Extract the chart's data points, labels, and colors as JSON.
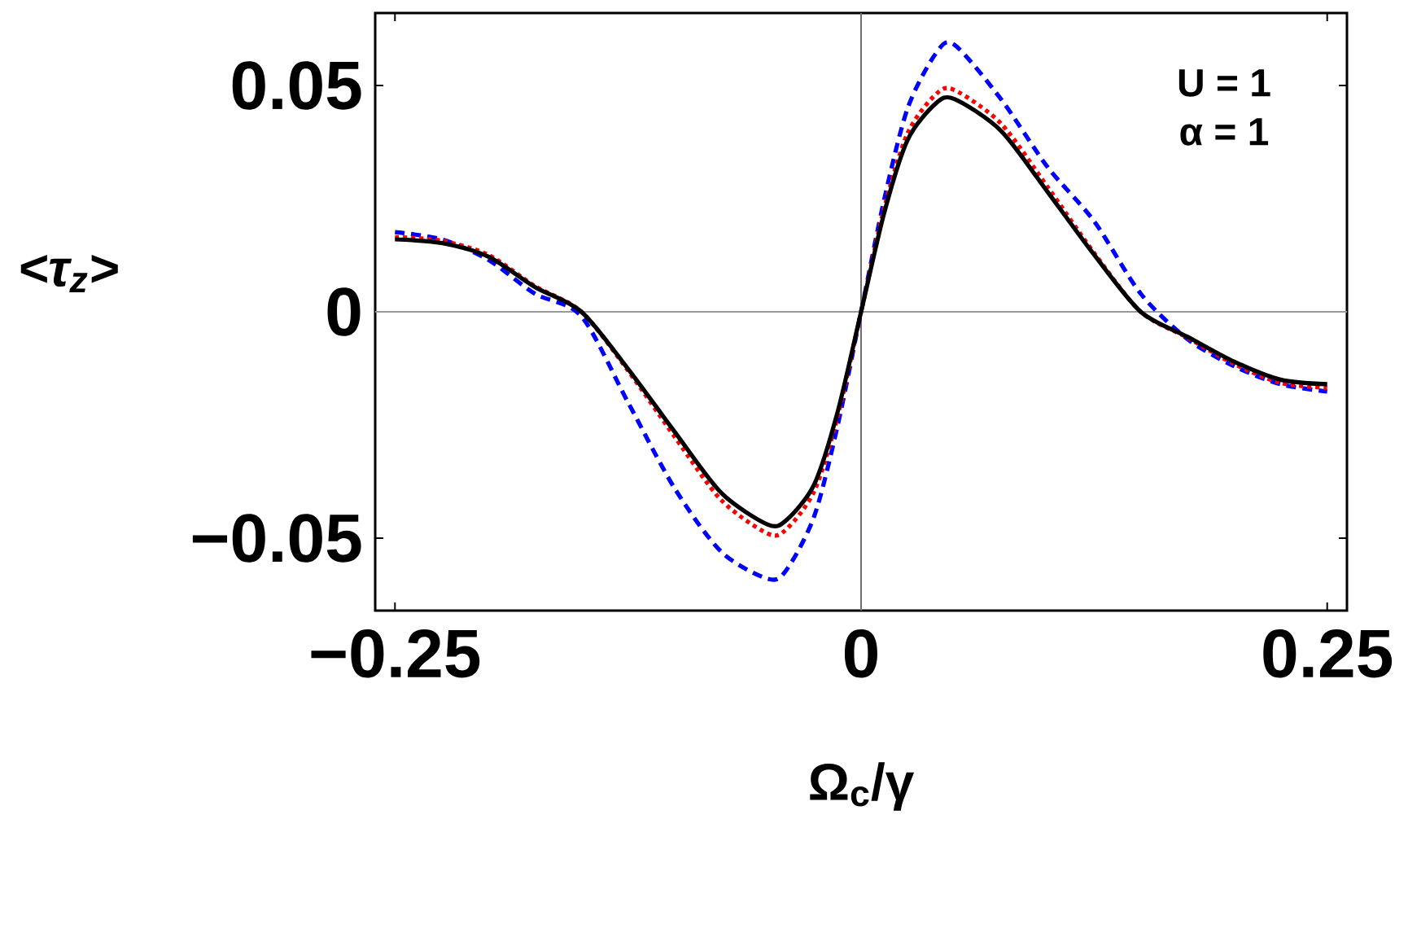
{
  "chart_data": {
    "type": "line",
    "xlabel": "Ω$_{c}$/γ",
    "ylabel": "<τ$_{z}$>",
    "annotations": [
      "U = 1",
      "α = 1"
    ],
    "xlim": [
      -0.2606,
      0.2606
    ],
    "ylim": [
      -0.066,
      0.066
    ],
    "xticks": [
      {
        "value": -0.25,
        "label": "−0.25"
      },
      0,
      0.25
    ],
    "yticks": [
      {
        "value": -0.05,
        "label": "−0.05"
      },
      0,
      0.05
    ],
    "grid": false,
    "marker": "none",
    "ref_lines": [
      {
        "axis": "x",
        "value": 0,
        "color": "#6e6e6e"
      },
      {
        "axis": "y",
        "value": 0,
        "color": "#9a9a9a"
      }
    ],
    "x": [
      -0.25,
      -0.225,
      -0.2,
      -0.175,
      -0.15,
      -0.125,
      -0.1,
      -0.075,
      -0.05,
      -0.04,
      -0.025,
      -0.0125,
      0,
      0.0125,
      0.025,
      0.04,
      0.05,
      0.075,
      0.1,
      0.125,
      0.15,
      0.175,
      0.2,
      0.225,
      0.25
    ],
    "series": [
      {
        "color": "#0000ff",
        "line_style": "dashed",
        "values": [
          0.0176,
          0.016,
          0.0115,
          0.004,
          -0.001,
          -0.02,
          -0.039,
          -0.053,
          -0.059,
          -0.057,
          -0.045,
          -0.025,
          0,
          0.025,
          0.045,
          0.057,
          0.059,
          0.047,
          0.032,
          0.02,
          0.004,
          -0.006,
          -0.012,
          -0.016,
          -0.0176
        ]
      },
      {
        "color": "#ff0000",
        "line_style": "dotted",
        "values": [
          0.0165,
          0.0157,
          0.0126,
          0.0057,
          0,
          -0.013,
          -0.0276,
          -0.0416,
          -0.049,
          -0.048,
          -0.0395,
          -0.023,
          0,
          0.023,
          0.0395,
          0.048,
          0.049,
          0.0416,
          0.0276,
          0.013,
          0,
          -0.0057,
          -0.0115,
          -0.0157,
          -0.0168
        ]
      },
      {
        "color": "#000000",
        "line_style": "solid",
        "values": [
          0.016,
          0.0152,
          0.0122,
          0.0055,
          0,
          -0.0126,
          -0.0265,
          -0.04,
          -0.047,
          -0.046,
          -0.038,
          -0.022,
          0,
          0.022,
          0.038,
          0.046,
          0.047,
          0.04,
          0.0265,
          0.0126,
          0,
          -0.0055,
          -0.011,
          -0.015,
          -0.016
        ]
      }
    ]
  }
}
